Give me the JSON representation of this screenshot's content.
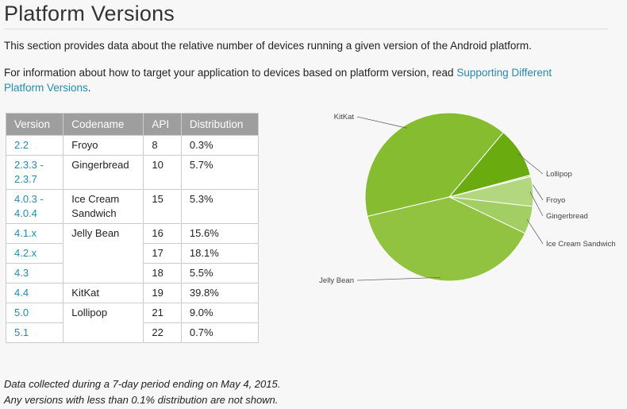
{
  "page": {
    "title": "Platform Versions",
    "intro": "This section provides data about the relative number of devices running a given version of the Android platform.",
    "info_prefix": "For information about how to target your application to devices based on platform version, read ",
    "info_link": "Supporting Different Platform Versions",
    "info_suffix": "."
  },
  "table": {
    "headers": [
      "Version",
      "Codename",
      "API",
      "Distribution"
    ],
    "rows": [
      {
        "version": "2.2",
        "codename": "Froyo",
        "api": "8",
        "dist": "0.3%"
      },
      {
        "version": "2.3.3 - 2.3.7",
        "codename": "Gingerbread",
        "api": "10",
        "dist": "5.7%"
      },
      {
        "version": "4.0.3 - 4.0.4",
        "codename": "Ice Cream Sandwich",
        "api": "15",
        "dist": "5.3%"
      },
      {
        "version": "4.1.x",
        "codename": "Jelly Bean",
        "api": "16",
        "dist": "15.6%"
      },
      {
        "version": "4.2.x",
        "codename": "",
        "api": "17",
        "dist": "18.1%"
      },
      {
        "version": "4.3",
        "codename": "",
        "api": "18",
        "dist": "5.5%"
      },
      {
        "version": "4.4",
        "codename": "KitKat",
        "api": "19",
        "dist": "39.8%"
      },
      {
        "version": "5.0",
        "codename": "Lollipop",
        "api": "21",
        "dist": "9.0%"
      },
      {
        "version": "5.1",
        "codename": "",
        "api": "22",
        "dist": "0.7%"
      }
    ]
  },
  "footnote": {
    "line1": "Data collected during a 7-day period ending on May 4, 2015.",
    "line2": "Any versions with less than 0.1% distribution are not shown."
  },
  "chart_data": {
    "type": "pie",
    "title": "",
    "slices": [
      {
        "label": "Lollipop",
        "value": 9.7,
        "color": "#6aab10"
      },
      {
        "label": "Froyo",
        "value": 0.3,
        "color": "#c5e39c"
      },
      {
        "label": "Gingerbread",
        "value": 5.7,
        "color": "#b2d77f"
      },
      {
        "label": "Ice Cream Sandwich",
        "value": 5.3,
        "color": "#a2ce63"
      },
      {
        "label": "Jelly Bean",
        "value": 39.2,
        "color": "#91c340"
      },
      {
        "label": "KitKat",
        "value": 39.8,
        "color": "#86bc2f"
      }
    ]
  }
}
